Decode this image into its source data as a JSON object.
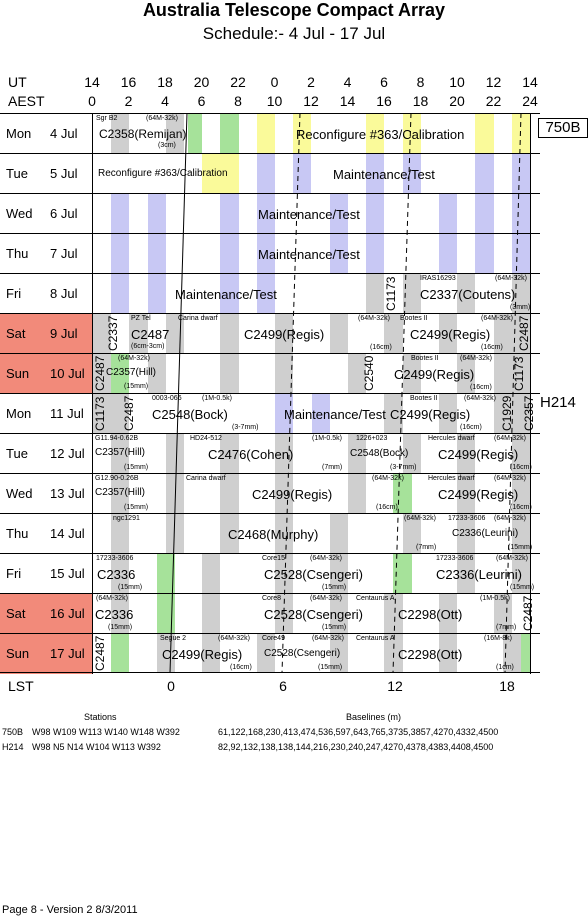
{
  "header": {
    "title": "Australia Telescope Compact Array",
    "subtitle": "Schedule:- 4  Jul - 17 Jul"
  },
  "axes": {
    "ut_label": "UT",
    "aest_label": "AEST",
    "lst_label": "LST",
    "ut_ticks": [
      "14",
      "16",
      "18",
      "20",
      "22",
      "0",
      "2",
      "4",
      "6",
      "8",
      "10",
      "12",
      "14"
    ],
    "aest_ticks": [
      "0",
      "2",
      "4",
      "6",
      "8",
      "10",
      "12",
      "14",
      "16",
      "18",
      "20",
      "22",
      "24"
    ],
    "lst_ticks": [
      "0",
      "6",
      "12",
      "18"
    ]
  },
  "configs": [
    {
      "label": "750B"
    },
    {
      "label": "H214"
    }
  ],
  "days": [
    {
      "name": "Mon",
      "date": "4  Jul",
      "weekend": false
    },
    {
      "name": "Tue",
      "date": "5  Jul",
      "weekend": false
    },
    {
      "name": "Wed",
      "date": "6  Jul",
      "weekend": false
    },
    {
      "name": "Thu",
      "date": "7  Jul",
      "weekend": false
    },
    {
      "name": "Fri",
      "date": "8  Jul",
      "weekend": false
    },
    {
      "name": "Sat",
      "date": "9  Jul",
      "weekend": true
    },
    {
      "name": "Sun",
      "date": "10 Jul",
      "weekend": true
    },
    {
      "name": "Mon",
      "date": "11 Jul",
      "weekend": false
    },
    {
      "name": "Tue",
      "date": "12 Jul",
      "weekend": false
    },
    {
      "name": "Wed",
      "date": "13 Jul",
      "weekend": false
    },
    {
      "name": "Thu",
      "date": "14 Jul",
      "weekend": false
    },
    {
      "name": "Fri",
      "date": "15 Jul",
      "weekend": false
    },
    {
      "name": "Sat",
      "date": "16 Jul",
      "weekend": true
    },
    {
      "name": "Sun",
      "date": "17 Jul",
      "weekend": true
    }
  ],
  "blocks": {
    "r0": {
      "sgr": "Sgr B2",
      "rx": "(64M-32k)",
      "proj": "C2358(Remijan)",
      "band": "(3cm)",
      "main": "Reconfigure #363/Calibration"
    },
    "r1": {
      "left": "Reconfigure #363/Calibration",
      "main": "Maintenance/Test"
    },
    "r2": {
      "main": "Maintenance/Test"
    },
    "r3": {
      "main": "Maintenance/Test"
    },
    "r4": {
      "main": "Maintenance/Test",
      "v1": "C1173",
      "src": "IRAS16293",
      "rx": "(64M-32k)",
      "proj": "C2337(Coutens)",
      "band": "(3mm)"
    },
    "r5": {
      "v1": "C2337",
      "src1": "PZ Tel",
      "proj1": "C2487",
      "band1": "(6cm-3cm)",
      "src2": "Carina dwarf",
      "rx2": "(64M-32k)",
      "proj2": "C2499(Regis)",
      "band2": "(16cm)",
      "src3": "Bootes II",
      "rx3": "(64M-32k)",
      "proj3": "C2499(Regis)",
      "band3": "(16cm)",
      "v2": "C2487"
    },
    "r6": {
      "v1": "C2487",
      "rx1": "(64M-32k)",
      "proj1": "C2357(Hill)",
      "band1": "(15mm)",
      "v2": "C2540",
      "src2": "Bootes II",
      "rx2": "(64M-32k)",
      "proj2": "C2499(Regis)",
      "band2": "(16cm)",
      "v3": "C1173"
    },
    "r7": {
      "v1": "C1173",
      "v2": "C2487",
      "src1": "0003-066",
      "rx1": "(1M-0.5k)",
      "proj1": "C2548(Bock)",
      "band1": "(3-7mm)",
      "mid": "Maintenance/Test",
      "src2": "Bootes II",
      "rx2": "(64M-32k)",
      "proj2": "C2499(Regis)",
      "band2": "(16cm)",
      "v3": "C1929",
      "v4": "C2357"
    },
    "r8": {
      "src1": "G11.94-0.62B",
      "proj1": "C2357(Hill)",
      "band1": "(15mm)",
      "src2": "HD24-512",
      "rx2": "(1M-0.5k)",
      "proj2": "C2476(Cohen)",
      "band2": "(7mm)",
      "src3": "1226+023",
      "proj3": "C2548(Bock)",
      "band3": "(3-7mm)",
      "src4": "Hercules dwarf",
      "rx4": "(64M-32k)",
      "proj4": "C2499(Regis)",
      "band4": "(16cm)"
    },
    "r9": {
      "src1": "G12.90-0.26B",
      "proj1": "C2357(Hill)",
      "band1": "(15mm)",
      "src2": "Carina dwarf",
      "proj2": "C2499(Regis)",
      "rx2": "(64M-32k)",
      "band2": "(16cm)",
      "src3": "Hercules dwarf",
      "rx3": "(64M-32k)",
      "proj3": "C2499(Regis)",
      "band3": "(16cm)"
    },
    "r10": {
      "src1": "ngc1291",
      "proj1": "C2468(Murphy)",
      "rx1": "(64M-32k)",
      "band1": "(7mm)",
      "src2": "17233-3606",
      "rx2": "(64M-32k)",
      "proj2": "C2336(Leurini)",
      "band2": "(15mm)"
    },
    "r11": {
      "src1": "17233-3606",
      "proj1": "C2336",
      "band1": "(15mm)",
      "src2": "Core15",
      "rx2": "(64M-32k)",
      "proj2": "C2528(Csengeri)",
      "band2": "(15mm)",
      "src3": "17233-3606",
      "rx3": "(64M-32k)",
      "proj3": "C2336(Leurini)",
      "band3": "(15mm)"
    },
    "r12": {
      "rx1": "(64M-32k)",
      "proj1": "C2336",
      "band1": "(15mm)",
      "src2": "Core8",
      "rx2": "(64M-32k)",
      "proj2": "C2528(Csengeri)",
      "band2": "(15mm)",
      "src3": "Centaurus A",
      "rx3": "(1M-0.5k)",
      "proj3": "C2298(Ott)",
      "band3": "(7mm)",
      "v1": "C2487"
    },
    "r13": {
      "v1": "C2487",
      "src1": "Segue 2",
      "rx1": "(64M-32k)",
      "proj1": "C2499(Regis)",
      "band1": "(16cm)",
      "src2": "Core49",
      "rx2": "(64M-32k)",
      "proj2": "C2528(Csengeri)",
      "band2": "(15mm)",
      "src3": "Centaurus A",
      "rx3": "(16M-8k)",
      "proj3": "C2298(Ott)",
      "band3": "(1cm)"
    }
  },
  "footer": {
    "stations_hdr": "Stations",
    "baselines_hdr": "Baselines (m)",
    "c1": "750B",
    "c1_stations": "W98 W109 W113 W140 W148 W392",
    "c1_baselines": "61,122,168,230,413,474,536,597,643,765,3735,3857,4270,4332,4500",
    "c2": "H214",
    "c2_stations": "W98 N5 N14 W104 W113 W392",
    "c2_baselines": "82,92,132,138,138,144,216,230,240,247,4270,4378,4383,4408,4500",
    "page": "Page 8 - Version 2  8/3/2011"
  }
}
